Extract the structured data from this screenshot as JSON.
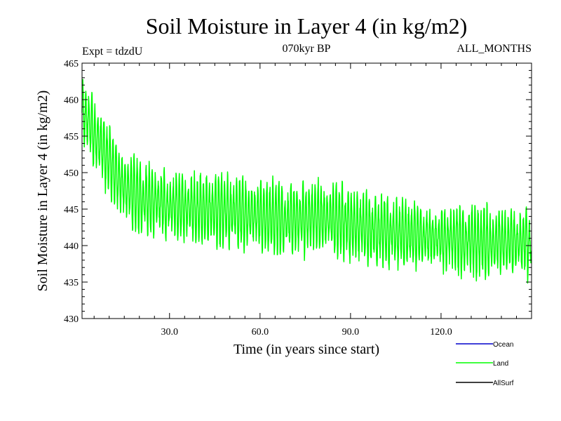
{
  "chart_data": {
    "type": "line",
    "title": "Soil Moisture in Layer 4 (in kg/m2)",
    "subtitle": "070kyr BP",
    "expt_label": "Expt = tdzdU",
    "months_label": "ALL_MONTHS",
    "xlabel": "Time (in years since start)",
    "ylabel": "Soil Moisture in Layer 4 (in kg/m2)",
    "xlim": [
      1,
      150
    ],
    "ylim": [
      430,
      465
    ],
    "x_ticks": [
      30,
      60,
      90,
      120
    ],
    "x_tick_labels": [
      "30.0",
      "60.0",
      "90.0",
      "120.0"
    ],
    "y_ticks": [
      430,
      435,
      440,
      445,
      450,
      455,
      460,
      465
    ],
    "y_tick_labels": [
      "430",
      "435",
      "440",
      "445",
      "450",
      "455",
      "460",
      "465"
    ],
    "x_step": 0.0833,
    "trend": [
      [
        1,
        458.5
      ],
      [
        5,
        455.5
      ],
      [
        8,
        453
      ],
      [
        12,
        450
      ],
      [
        15,
        448
      ],
      [
        20,
        446.5
      ],
      [
        30,
        445.5
      ],
      [
        40,
        445
      ],
      [
        55,
        444.5
      ],
      [
        70,
        443.5
      ],
      [
        80,
        444
      ],
      [
        90,
        443
      ],
      [
        100,
        442
      ],
      [
        110,
        441.5
      ],
      [
        120,
        441
      ],
      [
        135,
        440.5
      ],
      [
        150,
        440.5
      ]
    ],
    "seasonal_amplitude": 4.2,
    "legend_position": "bottom-right",
    "series": [
      {
        "name": "Ocean",
        "color": "#0000cc",
        "visible": false
      },
      {
        "name": "Land",
        "color": "#00ff00",
        "visible": true
      },
      {
        "name": "AllSurf",
        "color": "#000000",
        "visible": false
      }
    ]
  }
}
